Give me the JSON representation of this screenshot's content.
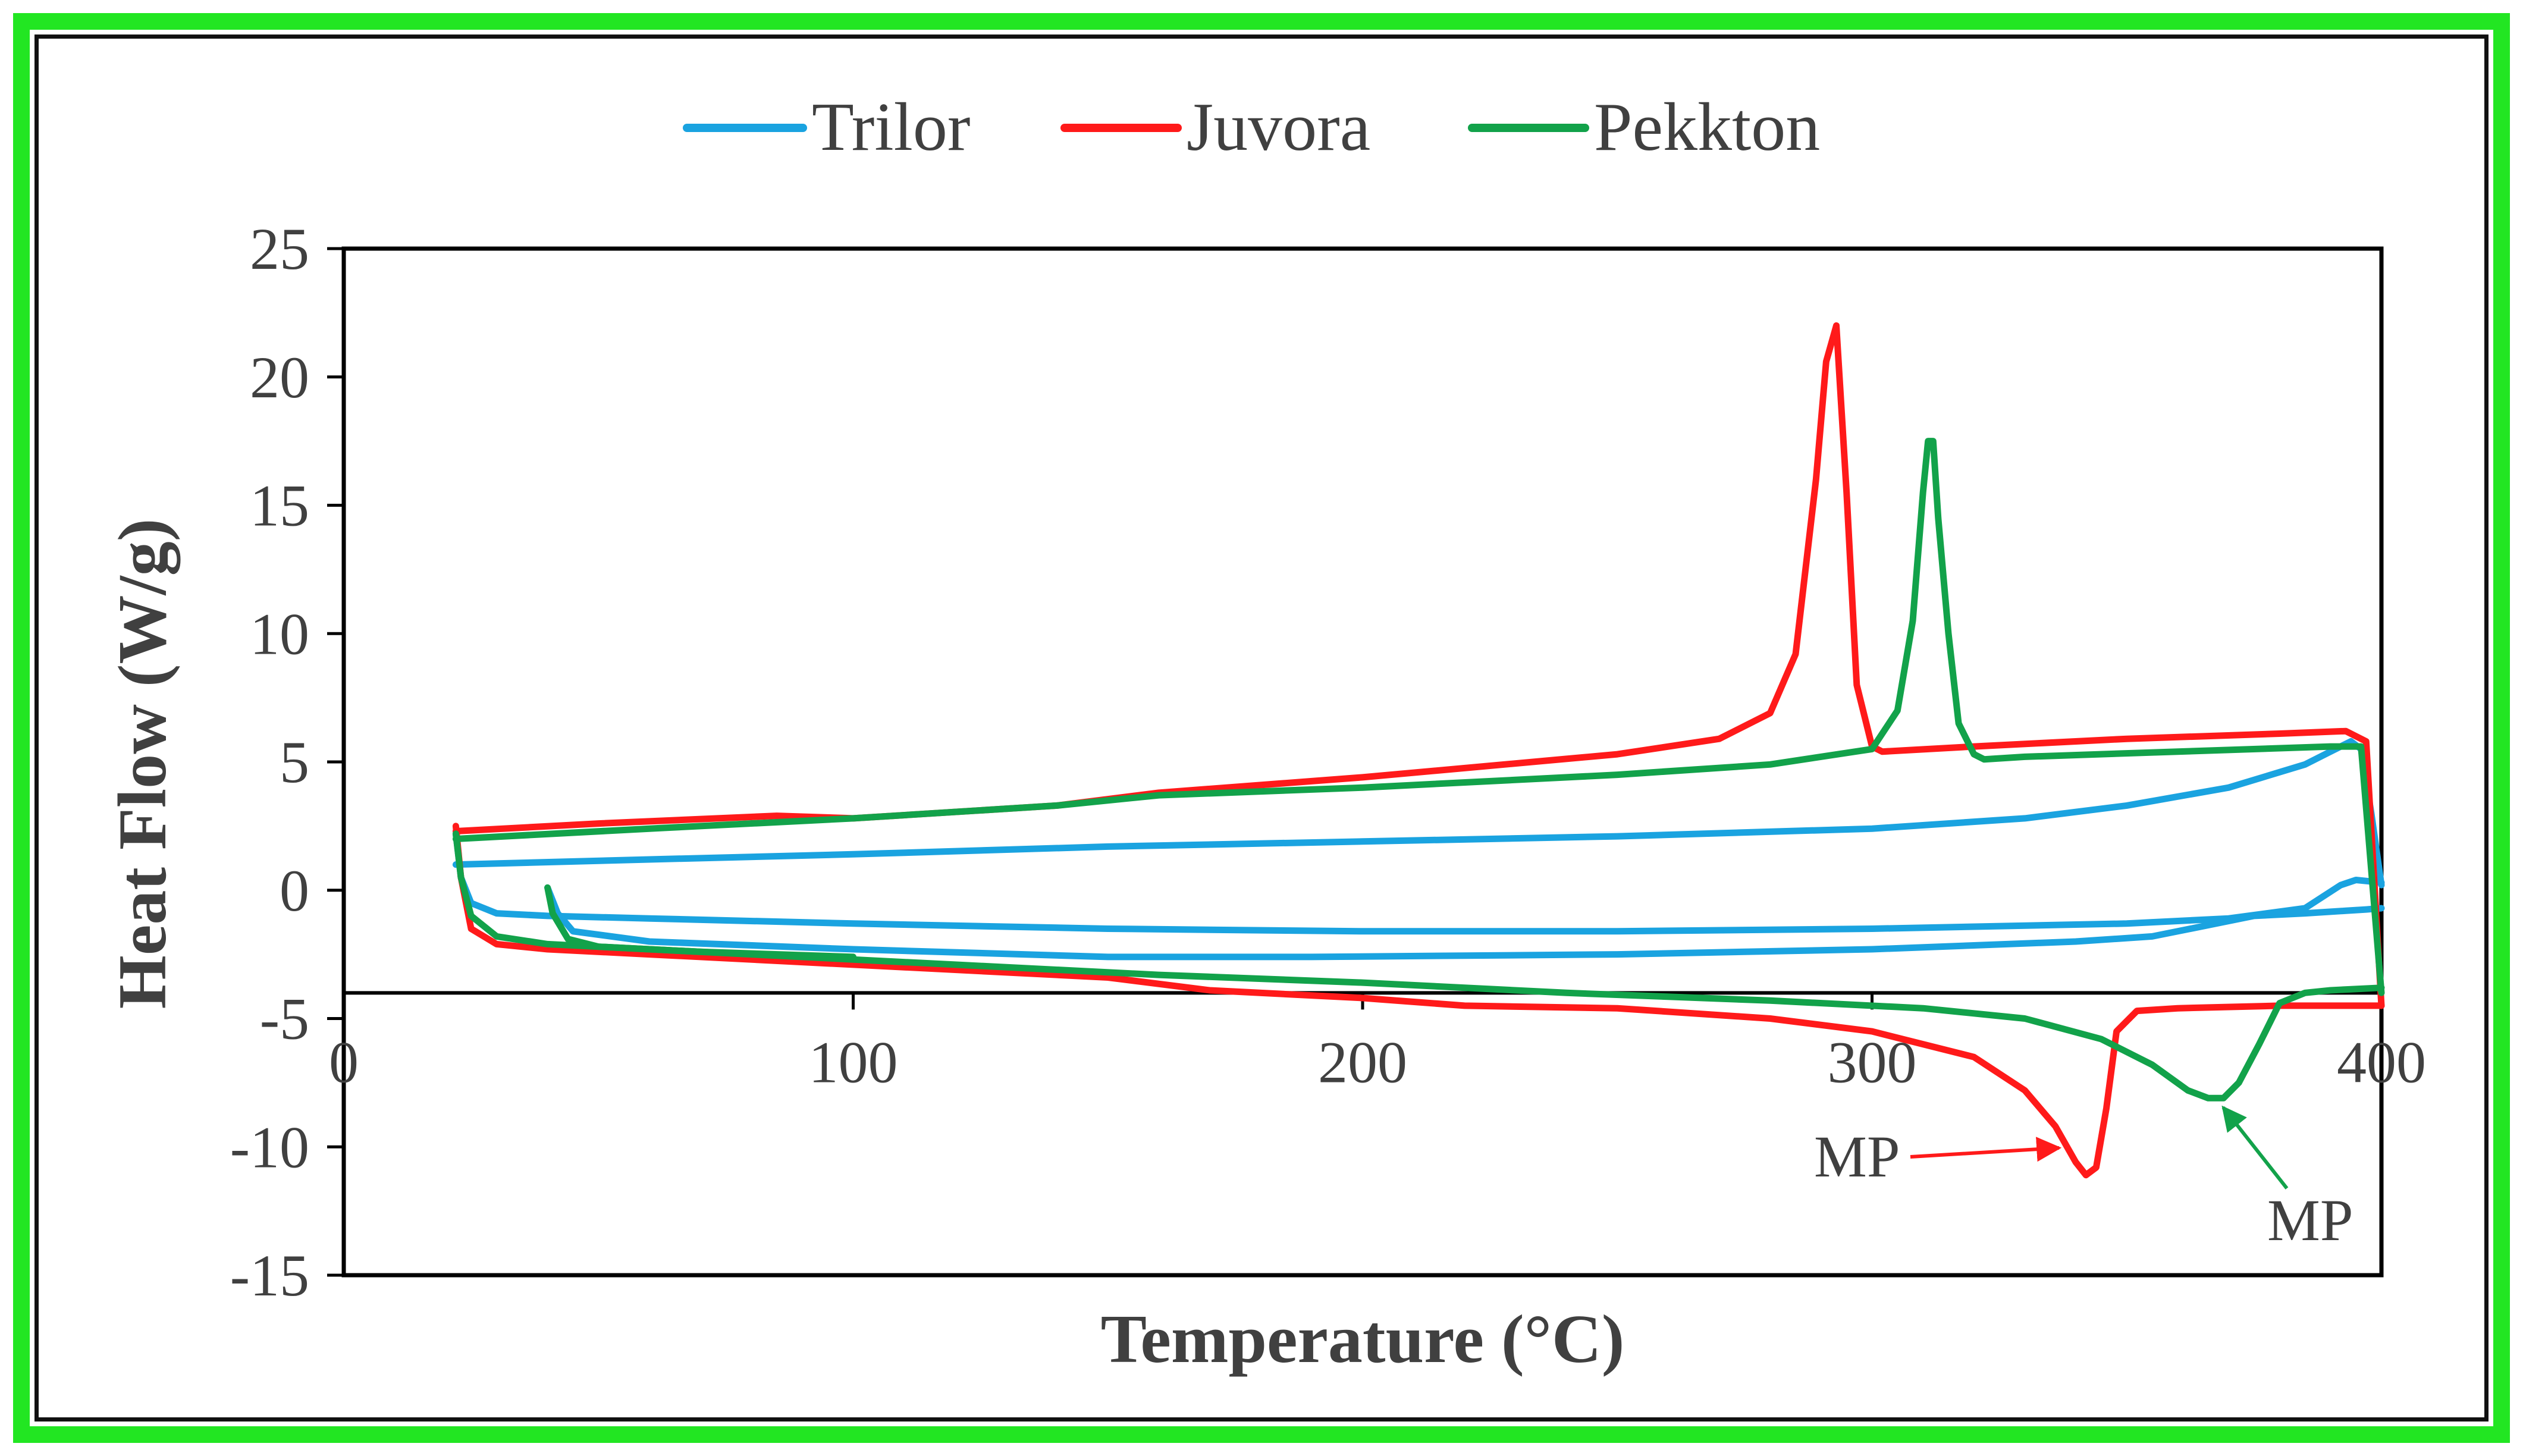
{
  "chart_data": {
    "type": "line",
    "title": "",
    "xlabel": "Temperature (°C)",
    "ylabel": "Heat Flow (W/g)",
    "xlim": [
      0,
      400
    ],
    "ylim": [
      -15,
      25
    ],
    "x_axis_crosses_y_at": -4,
    "grid": false,
    "legend_position": "top",
    "xticks": [
      0,
      100,
      200,
      300,
      400
    ],
    "yticks": [
      25,
      20,
      15,
      10,
      5,
      0,
      -5,
      -10,
      -15
    ],
    "series": [
      {
        "name": "Trilor",
        "color": "#1aa3e0",
        "segments": [
          {
            "x": [
              22,
              60,
              100,
              150,
              200,
              250,
              300,
              330,
              350,
              370,
              385,
              390,
              394,
              396,
              398,
              400
            ],
            "y": [
              1.0,
              1.2,
              1.4,
              1.7,
              1.9,
              2.1,
              2.4,
              2.8,
              3.3,
              4.0,
              4.9,
              5.4,
              5.8,
              5.5,
              3.0,
              0.2
            ]
          },
          {
            "x": [
              22,
              23,
              25,
              30,
              40,
              60,
              100,
              150,
              200,
              250,
              300,
              350,
              370,
              385,
              392,
              395,
              400
            ],
            "y": [
              2.2,
              0.5,
              -0.5,
              -0.9,
              -1.0,
              -1.1,
              -1.3,
              -1.5,
              -1.6,
              -1.6,
              -1.5,
              -1.3,
              -1.1,
              -0.7,
              0.2,
              0.4,
              0.3
            ]
          },
          {
            "x": [
              40,
              42,
              45,
              60,
              100,
              150,
              190,
              250,
              300,
              340,
              355,
              365,
              375,
              385,
              393,
              397,
              400
            ],
            "y": [
              0.1,
              -0.9,
              -1.6,
              -2.0,
              -2.3,
              -2.6,
              -2.6,
              -2.5,
              -2.3,
              -2.0,
              -1.8,
              -1.4,
              -1.0,
              -0.9,
              -0.8,
              -0.75,
              -0.7
            ]
          }
        ]
      },
      {
        "name": "Juvora",
        "color": "#ff1a1a",
        "segments": [
          {
            "x": [
              22,
              50,
              85,
              100,
              140,
              160,
              200,
              250,
              270,
              280,
              285,
              289,
              291,
              293,
              295,
              297,
              300,
              302,
              320,
              350,
              380,
              393,
              397,
              400
            ],
            "y": [
              2.3,
              2.6,
              2.9,
              2.8,
              3.3,
              3.8,
              4.4,
              5.3,
              5.9,
              6.9,
              9.2,
              16.0,
              20.6,
              22.0,
              15.5,
              8.0,
              5.6,
              5.4,
              5.6,
              5.9,
              6.1,
              6.2,
              5.8,
              -4.5
            ]
          },
          {
            "x": [
              22,
              23,
              25,
              30,
              40,
              60,
              100,
              150,
              170,
              200,
              220,
              250,
              280,
              300,
              320,
              330,
              336,
              340,
              342,
              344,
              346,
              348,
              352,
              360,
              380,
              400
            ],
            "y": [
              2.5,
              0.5,
              -1.5,
              -2.1,
              -2.3,
              -2.5,
              -2.9,
              -3.4,
              -3.9,
              -4.2,
              -4.5,
              -4.6,
              -5.0,
              -5.5,
              -6.5,
              -7.8,
              -9.2,
              -10.6,
              -11.1,
              -10.8,
              -8.5,
              -5.5,
              -4.7,
              -4.6,
              -4.5,
              -4.5
            ]
          }
        ]
      },
      {
        "name": "Pekkton",
        "color": "#12a24a",
        "segments": [
          {
            "x": [
              22,
              60,
              100,
              140,
              160,
              200,
              250,
              280,
              300,
              305,
              308,
              310,
              311,
              312,
              313,
              315,
              317,
              320,
              322,
              330,
              360,
              390,
              396,
              400
            ],
            "y": [
              2.0,
              2.4,
              2.8,
              3.3,
              3.7,
              4.0,
              4.5,
              4.9,
              5.5,
              7.0,
              10.5,
              15.5,
              17.5,
              17.5,
              14.5,
              10.0,
              6.5,
              5.3,
              5.1,
              5.2,
              5.4,
              5.6,
              5.6,
              -4.0
            ]
          },
          {
            "x": [
              22,
              23,
              25,
              30,
              40,
              80,
              120,
              160,
              200,
              240,
              280,
              310,
              330,
              345,
              355,
              362,
              366,
              369,
              372,
              376,
              380,
              385,
              390,
              400
            ],
            "y": [
              2.2,
              0.5,
              -1.0,
              -1.8,
              -2.1,
              -2.5,
              -2.9,
              -3.3,
              -3.6,
              -4.0,
              -4.3,
              -4.6,
              -5.0,
              -5.8,
              -6.8,
              -7.8,
              -8.1,
              -8.1,
              -7.5,
              -6.0,
              -4.4,
              -4.0,
              -3.9,
              -3.8
            ]
          },
          {
            "x": [
              40,
              41,
              44,
              50,
              70,
              100
            ],
            "y": [
              0.1,
              -0.9,
              -1.9,
              -2.2,
              -2.4,
              -2.6
            ]
          }
        ]
      }
    ],
    "annotations": [
      {
        "text": "MP",
        "series": "Juvora",
        "color": "#ff1a1a",
        "points_to": [
          342,
          -10.2
        ]
      },
      {
        "text": "MP",
        "series": "Pekkton",
        "color": "#12a24a",
        "points_to": [
          366,
          -8.2
        ]
      }
    ]
  }
}
